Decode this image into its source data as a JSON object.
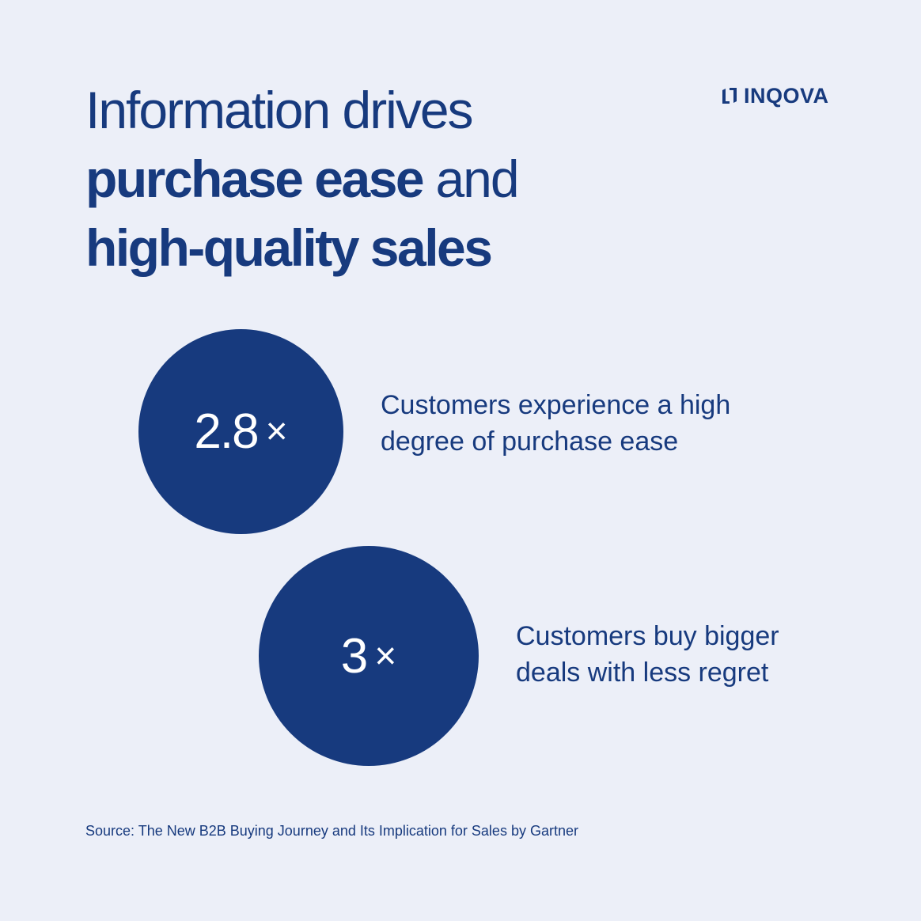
{
  "headline": {
    "line1": "Information drives",
    "line2_bold": "purchase ease",
    "line2_rest": " and",
    "line3_bold": "high-quality sales"
  },
  "logo": {
    "icon": "inqova-logo-mark-icon",
    "text": "INQOVA"
  },
  "stats": [
    {
      "value": "2.8",
      "multiplier": "×",
      "description_line1": "Customers experience a high",
      "description_line2": "degree of purchase ease"
    },
    {
      "value": "3",
      "multiplier": "×",
      "description_line1": "Customers buy bigger",
      "description_line2": "deals with less regret"
    }
  ],
  "source": "Source: The New B2B Buying Journey and Its Implication for Sales by Gartner",
  "colors": {
    "background": "#ECEFF8",
    "accent": "#173A7E",
    "circle_text": "#FFFFFF"
  }
}
